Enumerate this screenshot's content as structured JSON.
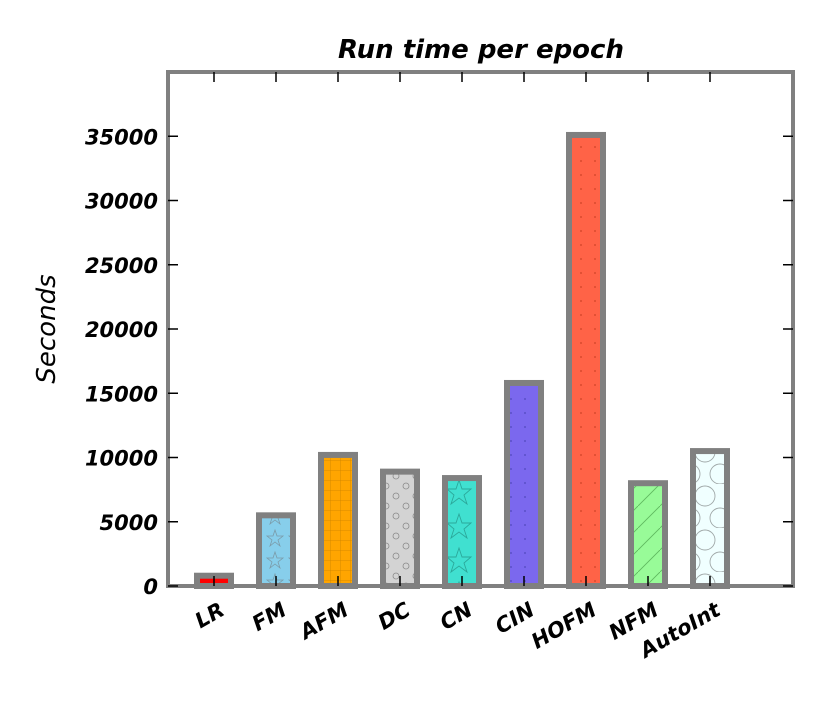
{
  "chart_data": {
    "type": "bar",
    "title": "Run time per epoch",
    "xlabel": "",
    "ylabel": "Seconds",
    "categories": [
      "LR",
      "FM",
      "AFM",
      "DC",
      "CN",
      "CIN",
      "HOFM",
      "NFM",
      "AutoInt"
    ],
    "values": [
      800,
      5500,
      10200,
      8900,
      8400,
      15800,
      35100,
      8000,
      10500
    ],
    "ylim": [
      0,
      40000
    ],
    "yticks": [
      0,
      5000,
      10000,
      15000,
      20000,
      25000,
      30000,
      35000
    ],
    "ytick_labels": [
      "0",
      "5000",
      "10000",
      "15000",
      "20000",
      "25000",
      "30000",
      "35000"
    ],
    "grid": false,
    "legend": false,
    "bar_colors": [
      "#ff0000",
      "#87ceeb",
      "#ffa500",
      "#d3d3d3",
      "#40e0d0",
      "#7b68ee",
      "#ff6347",
      "#98fb98",
      "#f0ffff"
    ],
    "bar_hatches": [
      "",
      "star",
      "grid",
      "small-circle",
      "big-star",
      "dots",
      "dots",
      "diagonal",
      "big-circle"
    ],
    "edge_color": "#808080"
  }
}
